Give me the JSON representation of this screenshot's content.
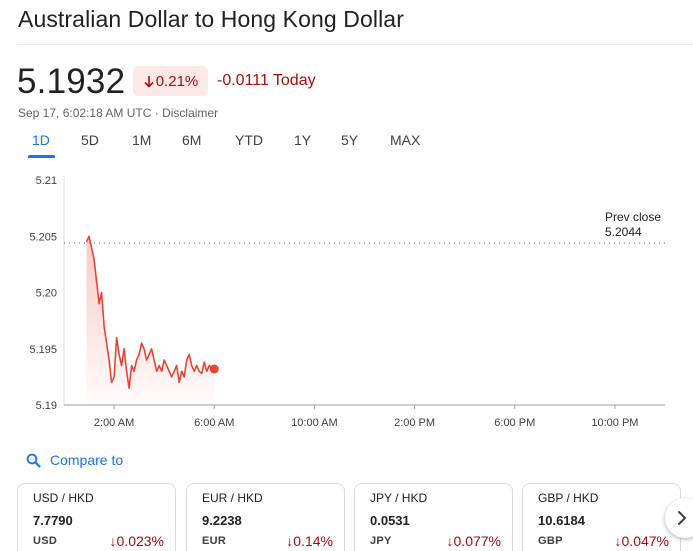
{
  "header": {
    "title": "Australian Dollar to Hong Kong Dollar"
  },
  "quote": {
    "price": "5.1932",
    "percent_change": "0.21%",
    "absolute_change": "-0.0111",
    "period_label": "Today",
    "timestamp": "Sep 17, 6:02:18 AM UTC",
    "separator": " · ",
    "disclaimer": "Disclaimer",
    "colors": {
      "negative": "#a50e0e",
      "negative_bg": "#fce8e6",
      "line": "#ea4335",
      "accent": "#1a73e8"
    }
  },
  "ranges": {
    "items": [
      "1D",
      "5D",
      "1M",
      "6M",
      "YTD",
      "1Y",
      "5Y",
      "MAX"
    ],
    "selected": "1D"
  },
  "chart_data": {
    "type": "line",
    "x_ticks": [
      "2:00 AM",
      "6:00 AM",
      "10:00 AM",
      "2:00 PM",
      "6:00 PM",
      "10:00 PM"
    ],
    "y_ticks": [
      "5.21",
      "5.205",
      "5.20",
      "5.195",
      "5.19"
    ],
    "ylim": [
      5.19,
      5.21
    ],
    "x_range_hours": [
      0,
      24
    ],
    "prev_close": {
      "label": "Prev close",
      "value": 5.2044,
      "value_text": "5.2044"
    },
    "series": [
      {
        "x": [
          0.9,
          1.0,
          1.1,
          1.2,
          1.3,
          1.4,
          1.5,
          1.6,
          1.7,
          1.8,
          1.9,
          2.0,
          2.1,
          2.2,
          2.3,
          2.4,
          2.5,
          2.6,
          2.7,
          2.8,
          2.9,
          3.0,
          3.1,
          3.2,
          3.3,
          3.4,
          3.5,
          3.6,
          3.7,
          3.8,
          3.9,
          4.0,
          4.1,
          4.2,
          4.3,
          4.4,
          4.5,
          4.6,
          4.7,
          4.8,
          4.9,
          5.0,
          5.1,
          5.2,
          5.3,
          5.4,
          5.5,
          5.6,
          5.7,
          5.8,
          5.9,
          6.0
        ],
        "y": [
          5.2045,
          5.205,
          5.204,
          5.203,
          5.201,
          5.199,
          5.2,
          5.197,
          5.1955,
          5.194,
          5.192,
          5.1925,
          5.196,
          5.1945,
          5.1935,
          5.195,
          5.193,
          5.1915,
          5.1935,
          5.193,
          5.194,
          5.1945,
          5.1955,
          5.195,
          5.194,
          5.1945,
          5.195,
          5.194,
          5.193,
          5.1935,
          5.193,
          5.194,
          5.1935,
          5.193,
          5.1925,
          5.193,
          5.1935,
          5.192,
          5.193,
          5.1925,
          5.194,
          5.1945,
          5.1935,
          5.193,
          5.1935,
          5.193,
          5.1928,
          5.1938,
          5.193,
          5.1935,
          5.1933,
          5.1932
        ]
      }
    ]
  },
  "compare": {
    "label": "Compare to"
  },
  "cards": [
    {
      "pair": "USD / HKD",
      "value": "7.7790",
      "base": "USD",
      "change": "0.023%"
    },
    {
      "pair": "EUR / HKD",
      "value": "9.2238",
      "base": "EUR",
      "change": "0.14%"
    },
    {
      "pair": "JPY / HKD",
      "value": "0.0531",
      "base": "JPY",
      "change": "0.077%"
    },
    {
      "pair": "GBP / HKD",
      "value": "10.6184",
      "base": "GBP",
      "change": "0.047%"
    }
  ]
}
